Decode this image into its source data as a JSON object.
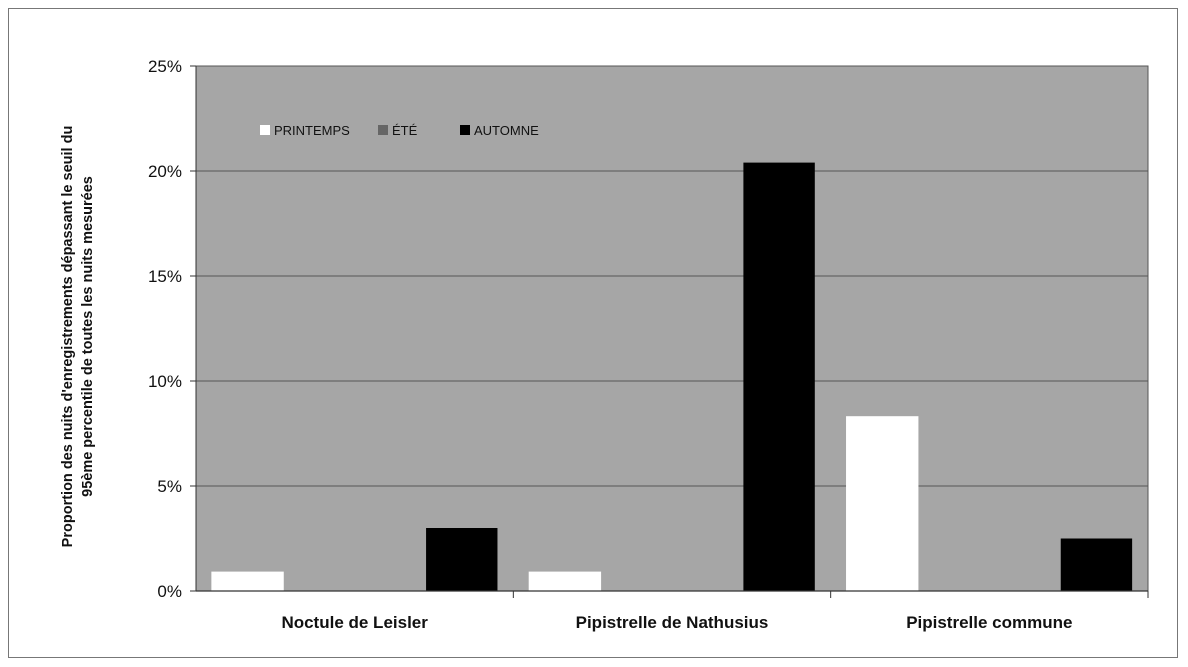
{
  "chart_data": {
    "type": "bar",
    "categories": [
      "Noctule de Leisler",
      "Pipistrelle de Nathusius",
      "Pipistrelle commune"
    ],
    "series": [
      {
        "name": "PRINTEMPS",
        "values": [
          0.9,
          0.9,
          8.3
        ],
        "color": "#ffffff"
      },
      {
        "name": "ÉTÉ",
        "values": [
          0,
          0,
          0
        ],
        "color": "#666666"
      },
      {
        "name": "AUTOMNE",
        "values": [
          3.0,
          20.4,
          2.5
        ],
        "color": "#000000"
      }
    ],
    "ylabel_lines": [
      "Proportion des nuits d'enregistrements dépassant  le seuil du",
      "95ème percentile de toutes les nuits mesurées"
    ],
    "yticks": [
      "0%",
      "5%",
      "10%",
      "15%",
      "20%",
      "25%"
    ],
    "ylim": [
      0,
      25
    ],
    "grid": true,
    "plot_background": "#a6a6a6",
    "legend_position": "top-left"
  }
}
